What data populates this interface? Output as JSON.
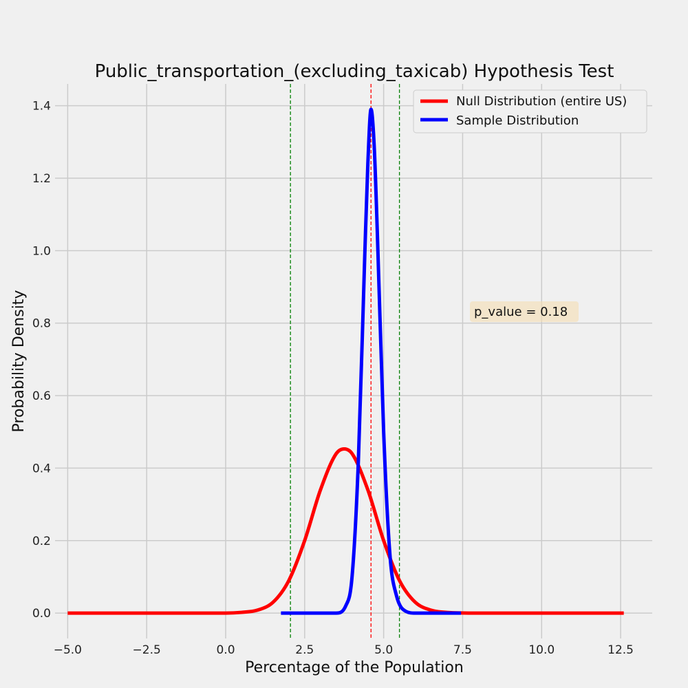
{
  "chart_data": {
    "type": "line",
    "title": "Public_transportation_(excluding_taxicab) Hypothesis Test",
    "xlabel": "Percentage of the Population",
    "ylabel": "Probability Density",
    "xlim": [
      -5.4,
      13.5
    ],
    "ylim": [
      -0.07,
      1.46
    ],
    "xticks": [
      -5.0,
      -2.5,
      0.0,
      2.5,
      5.0,
      7.5,
      10.0,
      12.5
    ],
    "xtick_labels": [
      "−5.0",
      "−2.5",
      "0.0",
      "2.5",
      "5.0",
      "7.5",
      "10.0",
      "12.5"
    ],
    "yticks": [
      0.0,
      0.2,
      0.4,
      0.6,
      0.8,
      1.0,
      1.2,
      1.4
    ],
    "ytick_labels": [
      "0.0",
      "0.2",
      "0.4",
      "0.6",
      "0.8",
      "1.0",
      "1.2",
      "1.4"
    ],
    "grid": true,
    "legend_position": "top-right",
    "series": [
      {
        "name": "Null Distribution (entire US)",
        "color": "#ff0000",
        "x": [
          -5.0,
          -2.0,
          0.0,
          0.5,
          1.0,
          1.5,
          2.0,
          2.5,
          3.0,
          3.5,
          3.75,
          4.0,
          4.5,
          5.0,
          5.5,
          6.0,
          6.5,
          7.0,
          8.0,
          10.0,
          12.6
        ],
        "y": [
          0.0,
          0.0,
          0.0,
          0.002,
          0.008,
          0.03,
          0.09,
          0.2,
          0.34,
          0.44,
          0.453,
          0.44,
          0.34,
          0.2,
          0.09,
          0.03,
          0.008,
          0.002,
          0.0,
          0.0,
          0.0
        ]
      },
      {
        "name": "Sample Distribution",
        "color": "#0000ff",
        "x": [
          1.75,
          3.5,
          3.8,
          4.0,
          4.2,
          4.4,
          4.5,
          4.6,
          4.7,
          4.8,
          5.0,
          5.2,
          5.4,
          5.7,
          6.0,
          7.45
        ],
        "y": [
          0.0,
          0.0,
          0.02,
          0.1,
          0.42,
          0.98,
          1.24,
          1.39,
          1.29,
          1.05,
          0.5,
          0.16,
          0.05,
          0.005,
          0.0,
          0.0
        ]
      }
    ],
    "vlines": [
      {
        "x": 2.05,
        "color": "#008000",
        "style": "dashed"
      },
      {
        "x": 5.5,
        "color": "#008000",
        "style": "dashed"
      },
      {
        "x": 4.6,
        "color": "#ff0000",
        "style": "dashed"
      }
    ],
    "annotation": {
      "text": "p_value = 0.18",
      "x": 9.3,
      "y": 0.83,
      "box_color": "#f5deb3"
    }
  }
}
